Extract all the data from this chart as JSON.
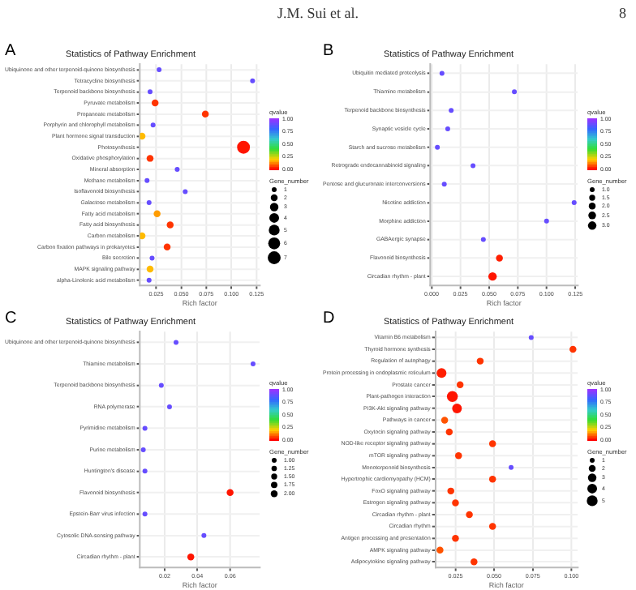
{
  "chart_data": [
    {
      "type": "bubble",
      "orientation": "horizontal",
      "title": "Statistics of Pathway Enrichment",
      "xlabel": "Rich factor",
      "clabel": "qvalue",
      "legend_title": "Gene_number",
      "grid": true,
      "annotations": [
        "A",
        "J.M. Sui et al.",
        "8"
      ],
      "categories": [
        "Ubiquinone and other terpenoid-quinone biosynthesis",
        "Tetracycline biosynthesis",
        "Terpenoid backbone biosynthesis",
        "Pyruvate metabolism",
        "Propanoate metabolism",
        "Porphyrin and chlorophyll metabolism",
        "Plant hormone signal transduction",
        "Photosynthesis",
        "Oxidative phosphorylation",
        "Mineral absorption",
        "Methane metabolism",
        "Isoflavonoid biosynthesis",
        "Galactose metabolism",
        "Fatty acid metabolism",
        "Fatty acid biosynthesis",
        "Carbon metabolism",
        "Carbon fixation pathways in prokaryotes",
        "Bile secretion",
        "MAPK signaling pathway",
        "alpha-Linolenic acid metabolism"
      ],
      "values": [
        0.028,
        0.121,
        0.019,
        0.024,
        0.074,
        0.022,
        0.011,
        0.112,
        0.019,
        0.046,
        0.016,
        0.054,
        0.018,
        0.026,
        0.039,
        0.011,
        0.036,
        0.021,
        0.019,
        0.018
      ],
      "sizes": [
        1,
        1,
        1,
        2,
        2,
        1,
        2,
        7,
        2,
        1,
        1,
        1,
        1,
        2,
        2,
        2,
        2,
        1,
        2,
        1
      ],
      "cvalues": [
        0.9,
        0.9,
        0.9,
        0.05,
        0.05,
        0.9,
        0.18,
        0.02,
        0.05,
        0.9,
        0.9,
        0.9,
        0.9,
        0.15,
        0.05,
        0.18,
        0.05,
        0.9,
        0.18,
        0.9
      ],
      "xlim": [
        0.009,
        0.128
      ],
      "xticks": [
        0.025,
        {
          "value": 0.05,
          "label": "0.050"
        },
        0.075,
        {
          "value": 0.1,
          "label": "0.100"
        },
        0.125
      ],
      "clim": [
        0,
        1
      ],
      "cticks": [
        {
          "value": 0,
          "label": "0.00"
        },
        {
          "value": 0.25,
          "label": "0.25"
        },
        {
          "value": 0.5,
          "label": "0.50"
        },
        {
          "value": 0.75,
          "label": "0.75"
        },
        {
          "value": 1,
          "label": "1.00"
        }
      ],
      "size_legend": [
        1,
        2,
        3,
        4,
        5,
        6,
        7
      ]
    },
    {
      "type": "bubble",
      "orientation": "horizontal",
      "title": "Statistics of Pathway Enrichment",
      "xlabel": "Rich factor",
      "clabel": "qvalue",
      "legend_title": "Gene_number",
      "grid": true,
      "annotations": [
        "B"
      ],
      "categories": [
        "Ubiquitin mediated proteolysis",
        "Thiamine metabolism",
        "Terpenoid backbone biosynthesis",
        "Synaptic vesicle cycle",
        "Starch and sucrose metabolism",
        "Retrograde endocannabinoid signaling",
        "Pentose and glucuronate interconversions",
        "Nicotine addiction",
        "Morphine addiction",
        "GABAergic synapse",
        "Flavonoid biosynthesis",
        "Circadian rhythm - plant"
      ],
      "values": [
        0.009,
        0.072,
        0.017,
        0.014,
        0.005,
        0.036,
        0.011,
        0.124,
        0.1,
        0.045,
        0.059,
        0.053
      ],
      "sizes": [
        1,
        1,
        1,
        1,
        1,
        1,
        1,
        1,
        1,
        1,
        2,
        3
      ],
      "cvalues": [
        0.9,
        0.9,
        0.9,
        0.9,
        0.9,
        0.9,
        0.9,
        0.9,
        0.9,
        0.9,
        0.03,
        0.02
      ],
      "xlim": [
        -0.001,
        0.127
      ],
      "xticks": [
        {
          "value": 0,
          "label": "0.000"
        },
        0.025,
        {
          "value": 0.05,
          "label": "0.050"
        },
        0.075,
        {
          "value": 0.1,
          "label": "0.100"
        },
        0.125
      ],
      "clim": [
        0,
        1
      ],
      "cticks": [
        {
          "value": 0,
          "label": "0.00"
        },
        {
          "value": 0.25,
          "label": "0.25"
        },
        {
          "value": 0.5,
          "label": "0.50"
        },
        {
          "value": 0.75,
          "label": "0.75"
        },
        {
          "value": 1,
          "label": "1.00"
        }
      ],
      "size_legend": [
        {
          "value": 1,
          "label": "1.0"
        },
        1.5,
        {
          "value": 2,
          "label": "2.0"
        },
        2.5,
        {
          "value": 3,
          "label": "3.0"
        }
      ]
    },
    {
      "type": "bubble",
      "orientation": "horizontal",
      "title": "Statistics of Pathway Enrichment",
      "xlabel": "Rich factor",
      "clabel": "qvalue",
      "legend_title": "Gene_number",
      "grid": true,
      "annotations": [
        "C"
      ],
      "categories": [
        "Ubiquinone and other terpenoid-quinone biosynthesis",
        "Thiamine metabolism",
        "Terpenoid backbone biosynthesis",
        "RNA polymerase",
        "Pyrimidine metabolism",
        "Purine metabolism",
        "Huntington's disease",
        "Flavonoid biosynthesis",
        "Epstein-Barr virus infection",
        "Cytosolic DNA-sensing pathway",
        "Circadian rhythm - plant"
      ],
      "values": [
        0.027,
        0.074,
        0.018,
        0.023,
        0.008,
        0.007,
        0.008,
        0.06,
        0.008,
        0.044,
        0.036
      ],
      "sizes": [
        1,
        1,
        1,
        1,
        1,
        1,
        1,
        2,
        1,
        1,
        2
      ],
      "cvalues": [
        0.9,
        0.9,
        0.9,
        0.9,
        0.9,
        0.9,
        0.9,
        0.02,
        0.9,
        0.9,
        0.02
      ],
      "xlim": [
        0.005,
        0.078
      ],
      "xticks": [
        0.02,
        0.04,
        0.06
      ],
      "clim": [
        0,
        1
      ],
      "cticks": [
        {
          "value": 0,
          "label": "0.00"
        },
        {
          "value": 0.25,
          "label": "0.25"
        },
        {
          "value": 0.5,
          "label": "0.50"
        },
        {
          "value": 0.75,
          "label": "0.75"
        },
        {
          "value": 1,
          "label": "1.00"
        }
      ],
      "size_legend": [
        {
          "value": 1,
          "label": "1.00"
        },
        1.25,
        {
          "value": 1.5,
          "label": "1.50"
        },
        1.75,
        {
          "value": 2,
          "label": "2.00"
        }
      ]
    },
    {
      "type": "bubble",
      "orientation": "horizontal",
      "title": "Statistics of Pathway Enrichment",
      "xlabel": "Rich factor",
      "clabel": "qvalue",
      "legend_title": "Gene_number",
      "grid": true,
      "annotations": [
        "D"
      ],
      "categories": [
        "Vitamin B6 metabolism",
        "Thyroid hormone synthesis",
        "Regulation of autophagy",
        "Protein processing in endoplasmic reticulum",
        "Prostate cancer",
        "Plant-pathogen interaction",
        "PI3K-Akt signaling pathway",
        "Pathways in cancer",
        "Oxytocin signaling pathway",
        "NOD-like receptor signaling pathway",
        "mTOR signaling pathway",
        "Monoterpenoid biosynthesis",
        "Hypertrophic cardiomyopathy (HCM)",
        "FoxO signaling pathway",
        "Estrogen signaling pathway",
        "Circadian rhythm - plant",
        "Circadian rhythm",
        "Antigen processing and presentation",
        "AMPK signaling pathway",
        "Adipocytokine signaling pathway"
      ],
      "values": [
        0.074,
        0.101,
        0.041,
        0.016,
        0.028,
        0.023,
        0.026,
        0.018,
        0.021,
        0.049,
        0.027,
        0.061,
        0.049,
        0.022,
        0.025,
        0.034,
        0.049,
        0.025,
        0.015,
        0.037
      ],
      "sizes": [
        1,
        2,
        2,
        4,
        2,
        5,
        4,
        2,
        2,
        2,
        2,
        1,
        2,
        2,
        2,
        2,
        2,
        2,
        2,
        2
      ],
      "cvalues": [
        0.9,
        0.05,
        0.05,
        0.03,
        0.05,
        0.02,
        0.02,
        0.08,
        0.05,
        0.05,
        0.05,
        0.9,
        0.05,
        0.05,
        0.05,
        0.05,
        0.05,
        0.05,
        0.08,
        0.05
      ],
      "xlim": [
        0.012,
        0.104
      ],
      "xticks": [
        0.025,
        {
          "value": 0.05,
          "label": "0.050"
        },
        0.075,
        {
          "value": 0.1,
          "label": "0.100"
        }
      ],
      "clim": [
        0,
        1
      ],
      "cticks": [
        {
          "value": 0,
          "label": "0.00"
        },
        {
          "value": 0.25,
          "label": "0.25"
        },
        {
          "value": 0.5,
          "label": "0.50"
        },
        {
          "value": 0.75,
          "label": "0.75"
        },
        {
          "value": 1,
          "label": "1.00"
        }
      ],
      "size_legend": [
        1,
        2,
        3,
        4,
        5
      ]
    }
  ]
}
